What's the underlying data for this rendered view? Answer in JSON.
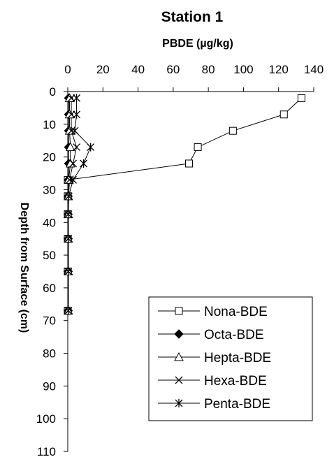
{
  "chart_data": {
    "type": "scatter",
    "title": "Station 1",
    "xlabel": "PBDE (µg/kg)",
    "ylabel": "Depth from Surface (cm)",
    "x_axis_position": "top",
    "y_axis_reversed": true,
    "xlim": [
      0,
      140
    ],
    "ylim": [
      0,
      110
    ],
    "x_ticks": [
      0,
      20,
      40,
      60,
      80,
      100,
      120,
      140
    ],
    "y_ticks": [
      0,
      10,
      20,
      30,
      40,
      50,
      60,
      70,
      80,
      90,
      100,
      110
    ],
    "x_tick_labels": [
      "0",
      "20",
      "40",
      "60",
      "80",
      "100",
      "120",
      "140"
    ],
    "y_tick_labels": [
      "0",
      "10",
      "20",
      "30",
      "40",
      "50",
      "60",
      "70",
      "80",
      "90",
      "100",
      "110"
    ],
    "grid": false,
    "legend_position": "bottom-right",
    "colors": {
      "marker": "#000000",
      "line": "#000000",
      "background": "#ffffff"
    },
    "series": [
      {
        "name": "Nona-BDE",
        "marker": "square-open",
        "points": [
          {
            "x": 133,
            "y": 2
          },
          {
            "x": 123,
            "y": 7
          },
          {
            "x": 94,
            "y": 12
          },
          {
            "x": 74,
            "y": 17
          },
          {
            "x": 69,
            "y": 22
          },
          {
            "x": 0,
            "y": 27
          },
          {
            "x": 0,
            "y": 32
          },
          {
            "x": 0,
            "y": 37.5
          },
          {
            "x": 0,
            "y": 45
          },
          {
            "x": 0,
            "y": 55
          },
          {
            "x": 0,
            "y": 67
          }
        ]
      },
      {
        "name": "Octa-BDE",
        "marker": "diamond-filled",
        "points": [
          {
            "x": 0.5,
            "y": 2
          },
          {
            "x": 0.5,
            "y": 7
          },
          {
            "x": 0.5,
            "y": 12
          },
          {
            "x": 0.5,
            "y": 17
          },
          {
            "x": 0.5,
            "y": 22
          },
          {
            "x": 0.3,
            "y": 27
          },
          {
            "x": 0.2,
            "y": 32
          },
          {
            "x": 0.2,
            "y": 37.5
          },
          {
            "x": 0.2,
            "y": 45
          },
          {
            "x": 0.2,
            "y": 55
          },
          {
            "x": 0.2,
            "y": 67
          }
        ]
      },
      {
        "name": "Hepta-BDE",
        "marker": "triangle-open",
        "points": [
          {
            "x": 1,
            "y": 2
          },
          {
            "x": 1,
            "y": 7
          },
          {
            "x": 1,
            "y": 12
          },
          {
            "x": 1.5,
            "y": 17
          },
          {
            "x": 1.5,
            "y": 22
          },
          {
            "x": 0.5,
            "y": 27
          },
          {
            "x": 0.3,
            "y": 32
          },
          {
            "x": 0.3,
            "y": 37.5
          },
          {
            "x": 0.3,
            "y": 45
          },
          {
            "x": 0.3,
            "y": 55
          },
          {
            "x": 0.3,
            "y": 67
          }
        ]
      },
      {
        "name": "Hexa-BDE",
        "marker": "x",
        "points": [
          {
            "x": 2,
            "y": 2
          },
          {
            "x": 2,
            "y": 7
          },
          {
            "x": 2,
            "y": 12
          },
          {
            "x": 5,
            "y": 17
          },
          {
            "x": 3,
            "y": 22
          },
          {
            "x": 1,
            "y": 27
          },
          {
            "x": 0.5,
            "y": 32
          },
          {
            "x": 0.3,
            "y": 37.5
          },
          {
            "x": 0.3,
            "y": 45
          },
          {
            "x": 0.3,
            "y": 55
          },
          {
            "x": 0.3,
            "y": 67
          }
        ]
      },
      {
        "name": "Penta-BDE",
        "marker": "asterisk",
        "points": [
          {
            "x": 5,
            "y": 2
          },
          {
            "x": 5,
            "y": 7
          },
          {
            "x": 4,
            "y": 12
          },
          {
            "x": 13,
            "y": 17
          },
          {
            "x": 9,
            "y": 22
          },
          {
            "x": 3,
            "y": 27
          },
          {
            "x": 0.5,
            "y": 32
          },
          {
            "x": 0.3,
            "y": 37.5
          },
          {
            "x": 0.3,
            "y": 45
          },
          {
            "x": 0.3,
            "y": 55
          },
          {
            "x": 0.3,
            "y": 67
          }
        ]
      }
    ]
  }
}
